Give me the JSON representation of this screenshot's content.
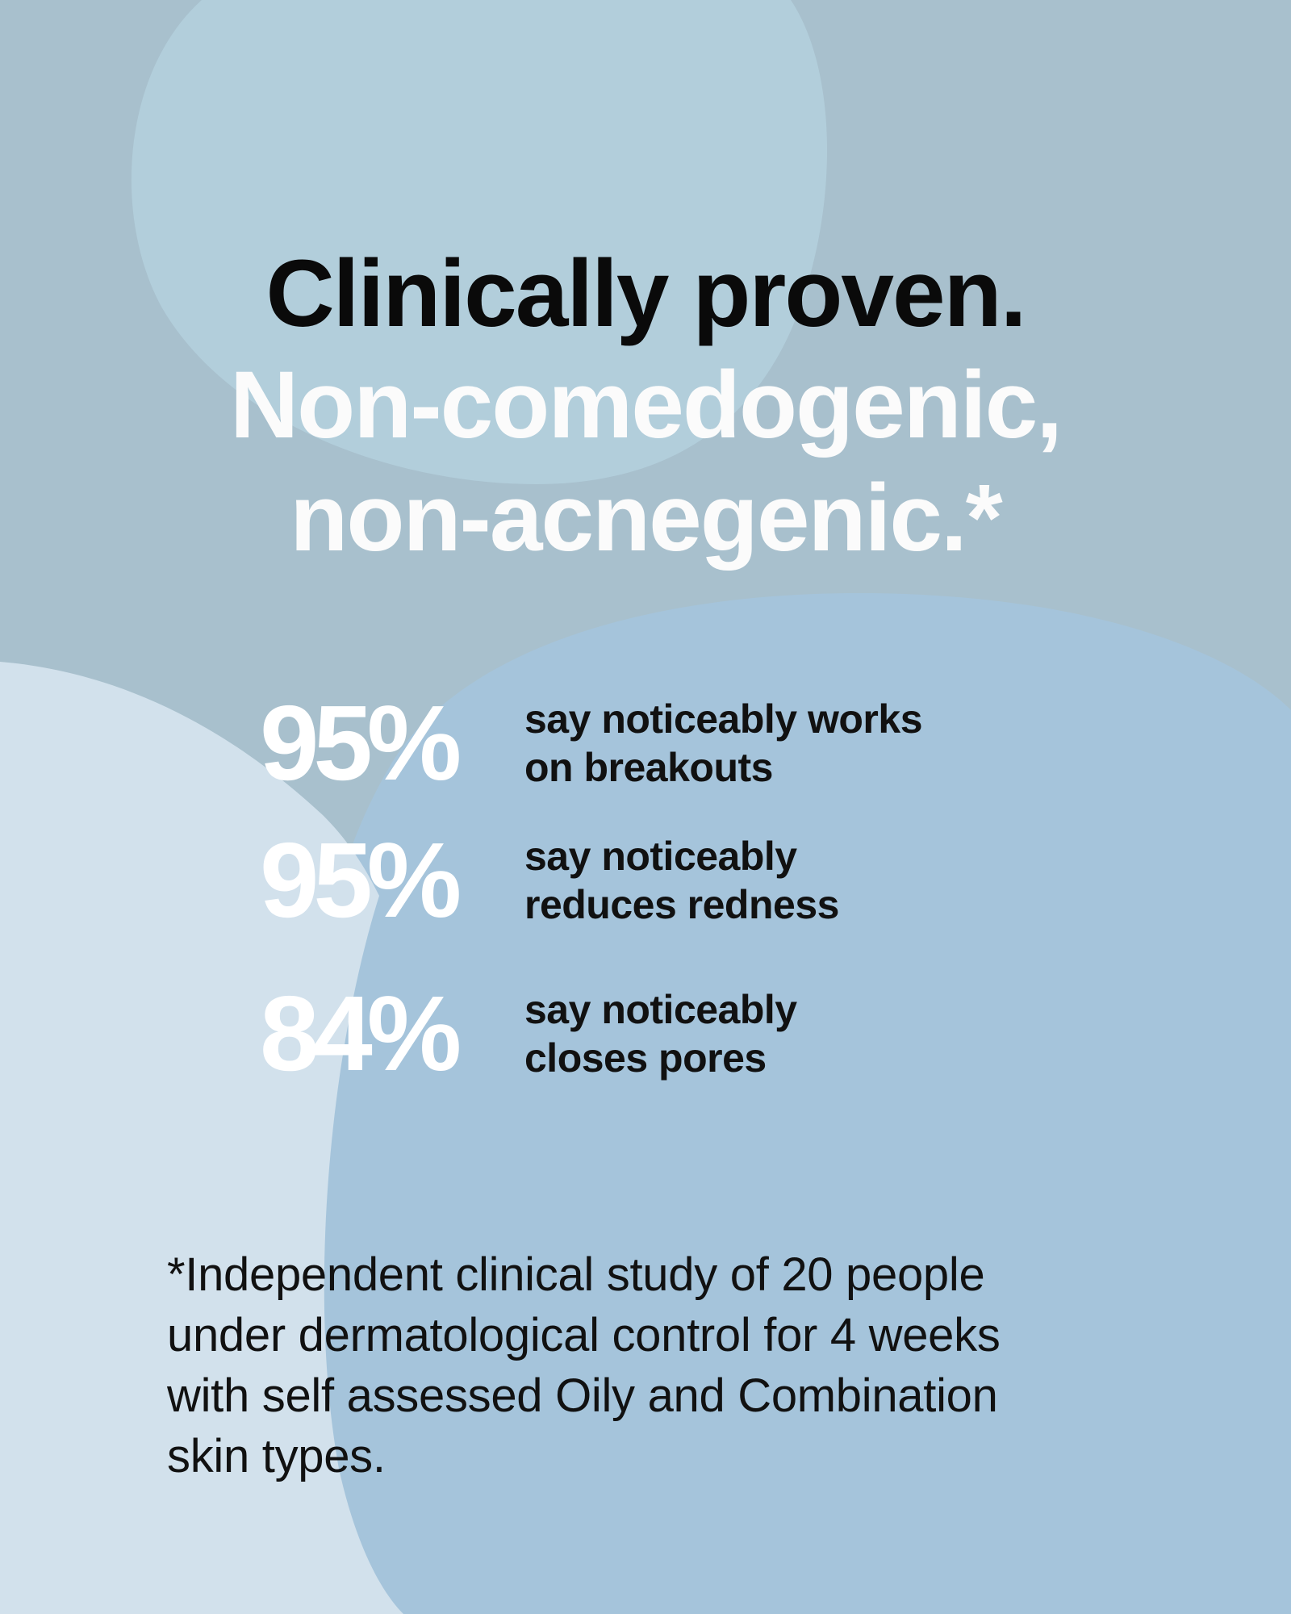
{
  "colors": {
    "background": "#a8c0cd",
    "blob_top": "#b2cedb",
    "blob_right": "#a5c4db",
    "blob_left": "#d2e1ec",
    "headline_dark": "#0a0a0a",
    "headline_light": "#fbfbfb",
    "percent": "#ffffff",
    "body_text": "#111111"
  },
  "headline": {
    "line1": "Clinically proven.",
    "line2": "Non-comedogenic,",
    "line3": "non-acnegenic.*"
  },
  "stats": [
    {
      "value": "95%",
      "desc_line1": "say noticeably works",
      "desc_line2": "on breakouts"
    },
    {
      "value": "95%",
      "desc_line1": "say noticeably",
      "desc_line2": "reduces redness"
    },
    {
      "value": "84%",
      "desc_line1": "say noticeably",
      "desc_line2": "closes pores"
    }
  ],
  "footnote": {
    "line1": "*Independent clinical study of 20 people",
    "line2": "under dermatological control for 4 weeks",
    "line3": "with self assessed Oily and Combination",
    "line4": "skin types."
  }
}
